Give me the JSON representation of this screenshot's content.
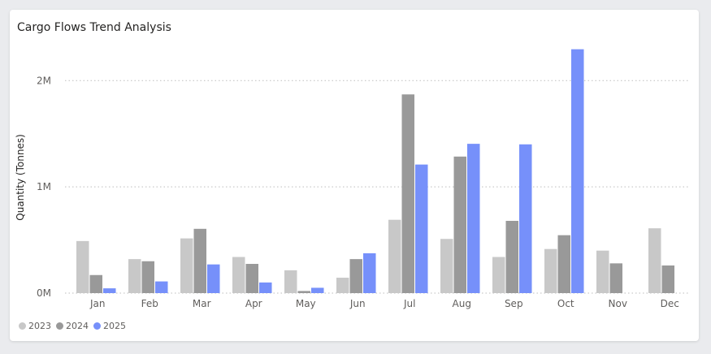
{
  "card": {
    "title": "Cargo Flows Trend Analysis"
  },
  "chart_data": {
    "type": "bar",
    "title": "Cargo Flows Trend Analysis",
    "xlabel": "",
    "ylabel": "Quantity (Tonnes)",
    "ylim": [
      0,
      2300000
    ],
    "yticks": [
      0,
      1000000,
      2000000
    ],
    "ytick_labels": [
      "0M",
      "1M",
      "2M"
    ],
    "grid": "horizontal-dotted",
    "legend_position": "bottom-left",
    "categories": [
      "Jan",
      "Feb",
      "Mar",
      "Apr",
      "May",
      "Jun",
      "Jul",
      "Aug",
      "Sep",
      "Oct",
      "Nov",
      "Dec"
    ],
    "series": [
      {
        "name": "2023",
        "color": "#c8c8c8",
        "values": [
          490000,
          320000,
          515000,
          340000,
          215000,
          145000,
          690000,
          510000,
          340000,
          415000,
          400000,
          610000
        ]
      },
      {
        "name": "2024",
        "color": "#999999",
        "values": [
          170000,
          300000,
          605000,
          275000,
          20000,
          320000,
          1870000,
          1285000,
          680000,
          545000,
          280000,
          260000
        ]
      },
      {
        "name": "2025",
        "color": "#7690fa",
        "values": [
          45000,
          110000,
          270000,
          100000,
          50000,
          375000,
          1210000,
          1405000,
          1400000,
          2295000,
          null,
          null
        ]
      }
    ]
  }
}
